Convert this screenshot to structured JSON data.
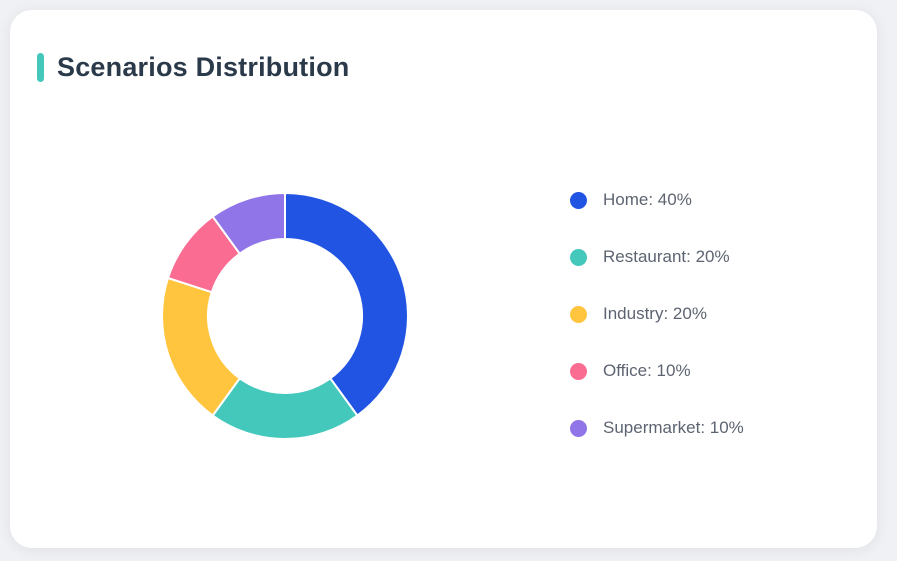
{
  "page": {
    "background_color": "#f0f1f4",
    "card_background": "#ffffff"
  },
  "card": {
    "title": "Scenarios Distribution",
    "accent_color": "#44c8bc",
    "title_color": "#2b3a4a"
  },
  "chart_data": {
    "type": "pie",
    "subtype": "donut",
    "title": "Scenarios Distribution",
    "categories": [
      "Home",
      "Restaurant",
      "Industry",
      "Office",
      "Supermarket"
    ],
    "values": [
      40,
      20,
      20,
      10,
      10
    ],
    "unit": "%",
    "colors": [
      "#2254e3",
      "#44c8bc",
      "#ffc53e",
      "#fa6c91",
      "#8f75e8"
    ],
    "start_angle_deg": 0,
    "direction": "clockwise",
    "inner_radius_ratio": 0.63,
    "slice_border_color": "#ffffff",
    "slice_border_width": 2,
    "legend_position": "right",
    "legend": [
      {
        "label": "Home: 40%"
      },
      {
        "label": "Restaurant: 20%"
      },
      {
        "label": "Industry: 20%"
      },
      {
        "label": "Office: 10%"
      },
      {
        "label": "Supermarket: 10%"
      }
    ]
  }
}
